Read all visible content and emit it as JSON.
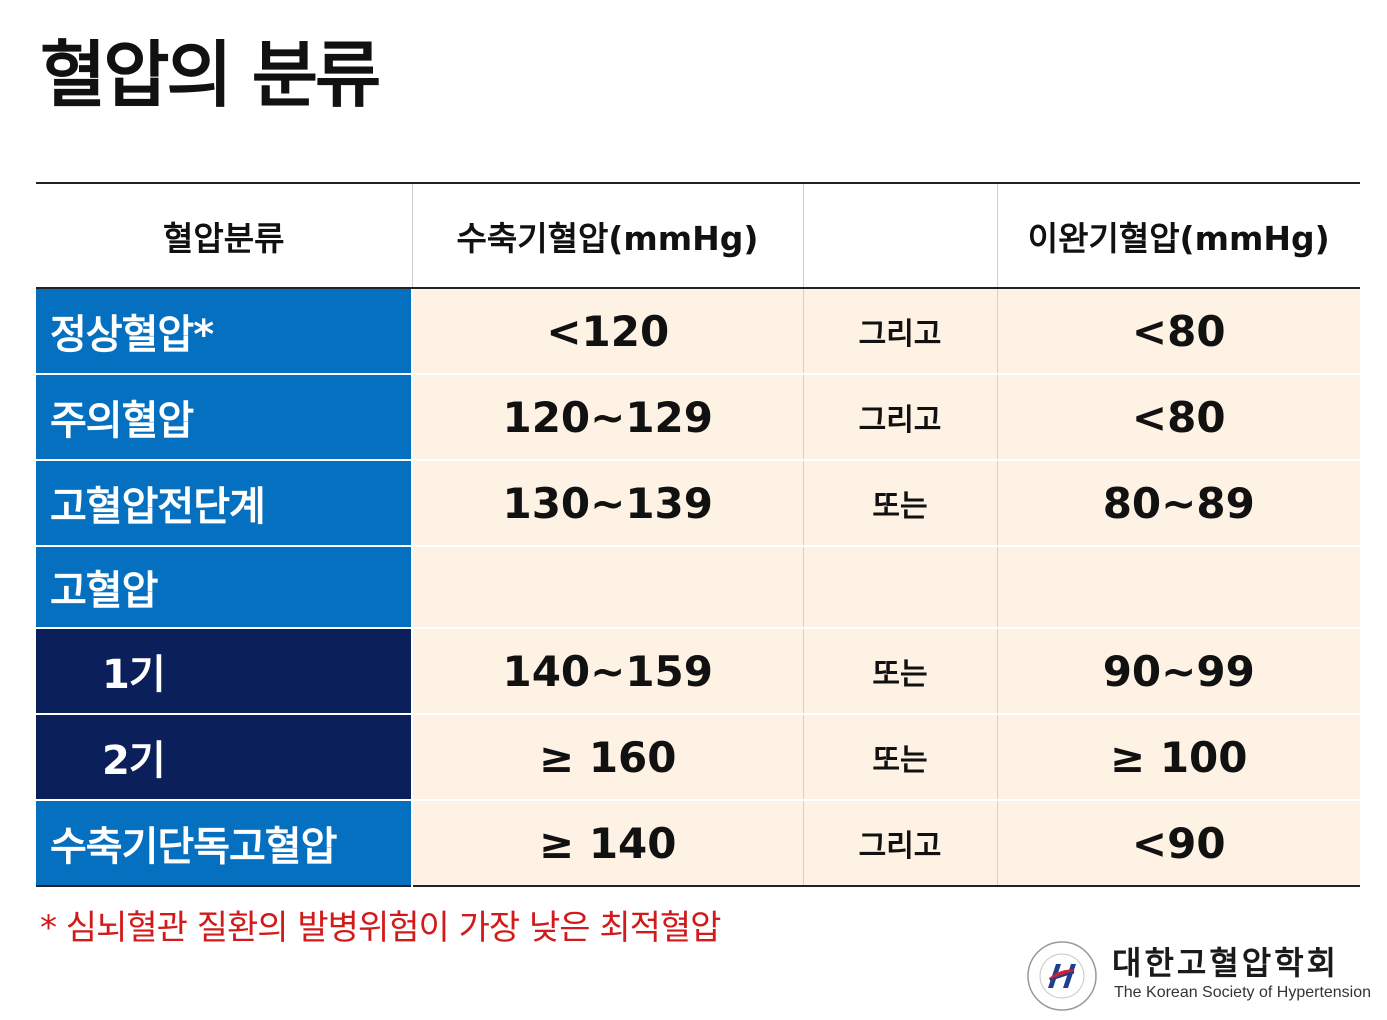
{
  "title": "혈압의 분류",
  "table": {
    "headers": [
      "혈압분류",
      "수축기혈압(mmHg)",
      "",
      "이완기혈압(mmHg)"
    ],
    "rows": [
      {
        "category": "정상혈압*",
        "systolic": "<120",
        "conj": "그리고",
        "diastolic": "<80"
      },
      {
        "category": "주의혈압",
        "systolic": "120~129",
        "conj": "그리고",
        "diastolic": "<80"
      },
      {
        "category": "고혈압전단계",
        "systolic": "130~139",
        "conj": "또는",
        "diastolic": "80~89"
      },
      {
        "category": "고혈압",
        "systolic": "",
        "conj": "",
        "diastolic": ""
      },
      {
        "category": "1기",
        "systolic": "140~159",
        "conj": "또는",
        "diastolic": "90~99"
      },
      {
        "category": "2기",
        "systolic": "≥ 160",
        "conj": "또는",
        "diastolic": "≥ 100"
      },
      {
        "category": "수축기단독고혈압",
        "systolic": "≥ 140",
        "conj": "그리고",
        "diastolic": "<90"
      }
    ]
  },
  "footnote": "* 심뇌혈관 질환의 발병위험이 가장 낮은 최적혈압",
  "logo": {
    "name_kr": "대한고혈압학회",
    "name_en": "The Korean Society of Hypertension",
    "seal_text": "대한고혈압학회 THE KOREAN SOCIETY OF HYPERTENSION"
  },
  "colors": {
    "category_blue": "#0570c0",
    "category_navy": "#0b1f5a",
    "value_bg": "#fdf2e4",
    "footnote_red": "#d11b1b"
  }
}
